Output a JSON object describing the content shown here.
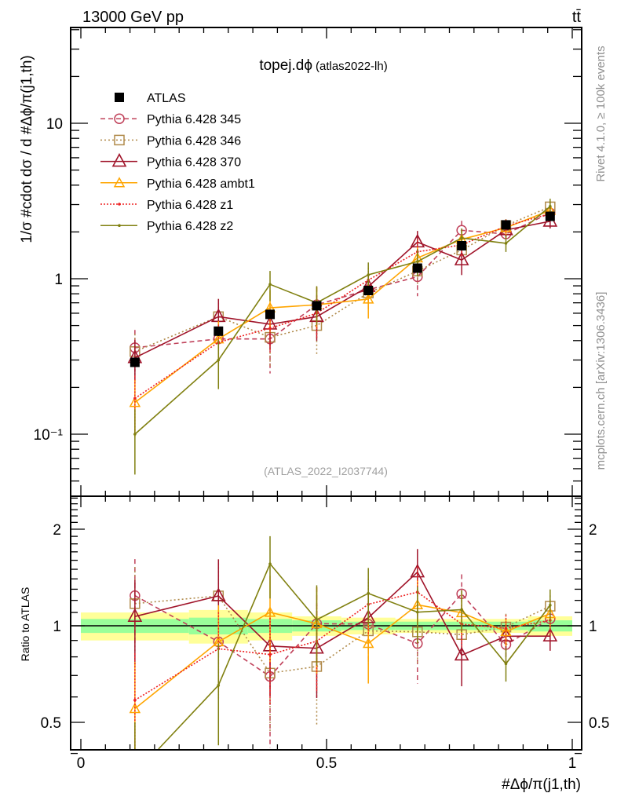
{
  "header": {
    "energy_label": "13000 GeV pp",
    "process_label": "tt̄",
    "plot_title": "topej.dϕ",
    "plot_subtitle": "(atlas2022-lh)",
    "watermark": "(ATLAS_2022_I2037744)",
    "side_note_top": "Rivet 4.1.0, ≥ 100k events",
    "side_note_bottom": "mcplots.cern.ch [arXiv:1306.3436]"
  },
  "chart_data": [
    {
      "type": "line",
      "panel": "main",
      "ylabel": "1/σ #cdot dσ / d #Δϕ/π(j1,th)",
      "yscale": "log",
      "ylim": [
        0.04,
        41
      ],
      "xlim": [
        0,
        1
      ],
      "yticks": [
        {
          "value": 10,
          "label": "10"
        },
        {
          "value": 1,
          "label": "1"
        },
        {
          "value": 0.1,
          "label": "10⁻¹"
        }
      ],
      "x": [
        0.11,
        0.28,
        0.385,
        0.48,
        0.585,
        0.685,
        0.775,
        0.865,
        0.955
      ],
      "series": [
        {
          "name": "ATLAS",
          "color": "#000000",
          "marker": "square",
          "dash": "none",
          "values": [
            0.29,
            0.46,
            0.59,
            0.67,
            0.84,
            1.17,
            1.63,
            2.22,
            2.52
          ],
          "rel_err": [
            0.06,
            0.07,
            0.06,
            0.04,
            0.03,
            0.03,
            0.03,
            0.03,
            0.04
          ]
        },
        {
          "name": "Pythia 6.428 345",
          "color": "#c0415a",
          "marker": "circle",
          "dash": "6,4",
          "values": [
            0.36,
            0.41,
            0.41,
            0.68,
            0.85,
            1.03,
            2.05,
            1.94,
            2.65
          ],
          "rel_err": [
            0.3,
            0.3,
            0.4,
            0.3,
            0.25,
            0.25,
            0.15,
            0.12,
            0.08
          ]
        },
        {
          "name": "Pythia 6.428 346",
          "color": "#b08a4a",
          "marker": "square-open",
          "dash": "2,3",
          "values": [
            0.34,
            0.57,
            0.42,
            0.5,
            0.81,
            1.12,
            1.53,
            2.2,
            2.9
          ],
          "rel_err": [
            0.3,
            0.3,
            0.35,
            0.35,
            0.2,
            0.2,
            0.15,
            0.1,
            0.08
          ]
        },
        {
          "name": "Pythia 6.428 370",
          "color": "#a0142a",
          "marker": "triangle-large",
          "dash": "none",
          "values": [
            0.31,
            0.57,
            0.51,
            0.57,
            0.89,
            1.72,
            1.32,
            2.06,
            2.34
          ],
          "rel_err": [
            0.3,
            0.3,
            0.3,
            0.3,
            0.2,
            0.18,
            0.2,
            0.1,
            0.1
          ]
        },
        {
          "name": "Pythia 6.428 ambt1",
          "color": "#ffa500",
          "marker": "triangle",
          "dash": "none",
          "values": [
            0.16,
            0.41,
            0.65,
            0.68,
            0.74,
            1.36,
            1.79,
            2.13,
            2.75
          ],
          "rel_err": [
            0.4,
            0.3,
            0.3,
            0.3,
            0.25,
            0.2,
            0.15,
            0.1,
            0.1
          ]
        },
        {
          "name": "Pythia 6.428 z1",
          "color": "#ee2222",
          "marker": "dot",
          "dash": "2,2",
          "values": [
            0.17,
            0.39,
            0.48,
            0.6,
            0.98,
            1.49,
            1.65,
            2.18,
            2.62
          ],
          "rel_err": [
            0.4,
            0.3,
            0.3,
            0.3,
            0.2,
            0.2,
            0.15,
            0.1,
            0.1
          ]
        },
        {
          "name": "Pythia 6.428 z2",
          "color": "#808010",
          "marker": "dot",
          "dash": "none",
          "values": [
            0.1,
            0.3,
            0.92,
            0.7,
            1.06,
            1.29,
            1.83,
            1.69,
            2.92
          ],
          "rel_err": [
            0.45,
            0.35,
            0.22,
            0.28,
            0.2,
            0.2,
            0.15,
            0.12,
            0.12
          ]
        }
      ]
    },
    {
      "type": "line",
      "panel": "ratio",
      "ylabel": "Ratio to ATLAS",
      "xlabel": "#Δϕ/π(j1,th)",
      "yscale": "log",
      "ylim": [
        0.4,
        2.55
      ],
      "xlim": [
        0,
        1
      ],
      "yticks": [
        {
          "value": 2,
          "label": "2"
        },
        {
          "value": 1,
          "label": "1"
        },
        {
          "value": 0.5,
          "label": "0.5"
        }
      ],
      "xticks": [
        {
          "value": 0,
          "label": "0"
        },
        {
          "value": 0.5,
          "label": "0.5"
        },
        {
          "value": 1,
          "label": "1"
        }
      ],
      "bin_edges": [
        0,
        0.22,
        0.34,
        0.43,
        0.53,
        0.64,
        0.73,
        0.82,
        0.91,
        1
      ],
      "band_stat": [
        0.05,
        0.06,
        0.05,
        0.04,
        0.03,
        0.03,
        0.03,
        0.03,
        0.04
      ],
      "band_total": [
        0.1,
        0.12,
        0.1,
        0.07,
        0.06,
        0.05,
        0.05,
        0.05,
        0.07
      ]
    }
  ]
}
